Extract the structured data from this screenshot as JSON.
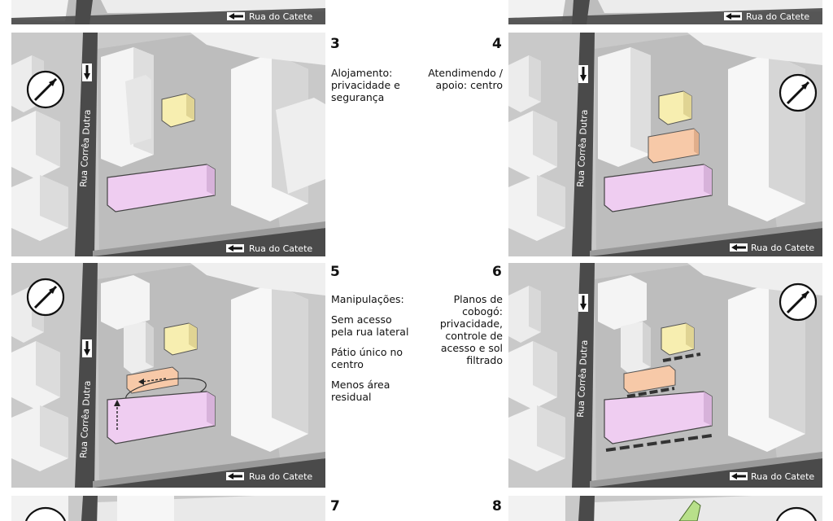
{
  "streets": {
    "horizontal": "Rua do Catete",
    "vertical": "Rua Corrêa Dutra"
  },
  "colors": {
    "alojamento": "#f7eeb0",
    "atendimento": "#f7c9a8",
    "lilac": "#efcdf1",
    "green": "#b8e08a",
    "ground": "#bdbdbd",
    "street": "#4a4a4a",
    "building": "#f4f4f4"
  },
  "panels": [
    {
      "number": "3",
      "paragraphs": [
        "Alojamento: privacidade e segurança"
      ]
    },
    {
      "number": "4",
      "paragraphs": [
        "Atendimendo / apoio: centro"
      ]
    },
    {
      "number": "5",
      "paragraphs": [
        "Manipulações:",
        "Sem acesso pela rua lateral",
        "Pátio único no centro",
        "Menos área residual"
      ]
    },
    {
      "number": "6",
      "paragraphs": [
        "Planos de cobogó: privacidade, controle de acesso e sol filtrado"
      ]
    },
    {
      "number": "7",
      "paragraphs": []
    },
    {
      "number": "8",
      "paragraphs": []
    }
  ]
}
